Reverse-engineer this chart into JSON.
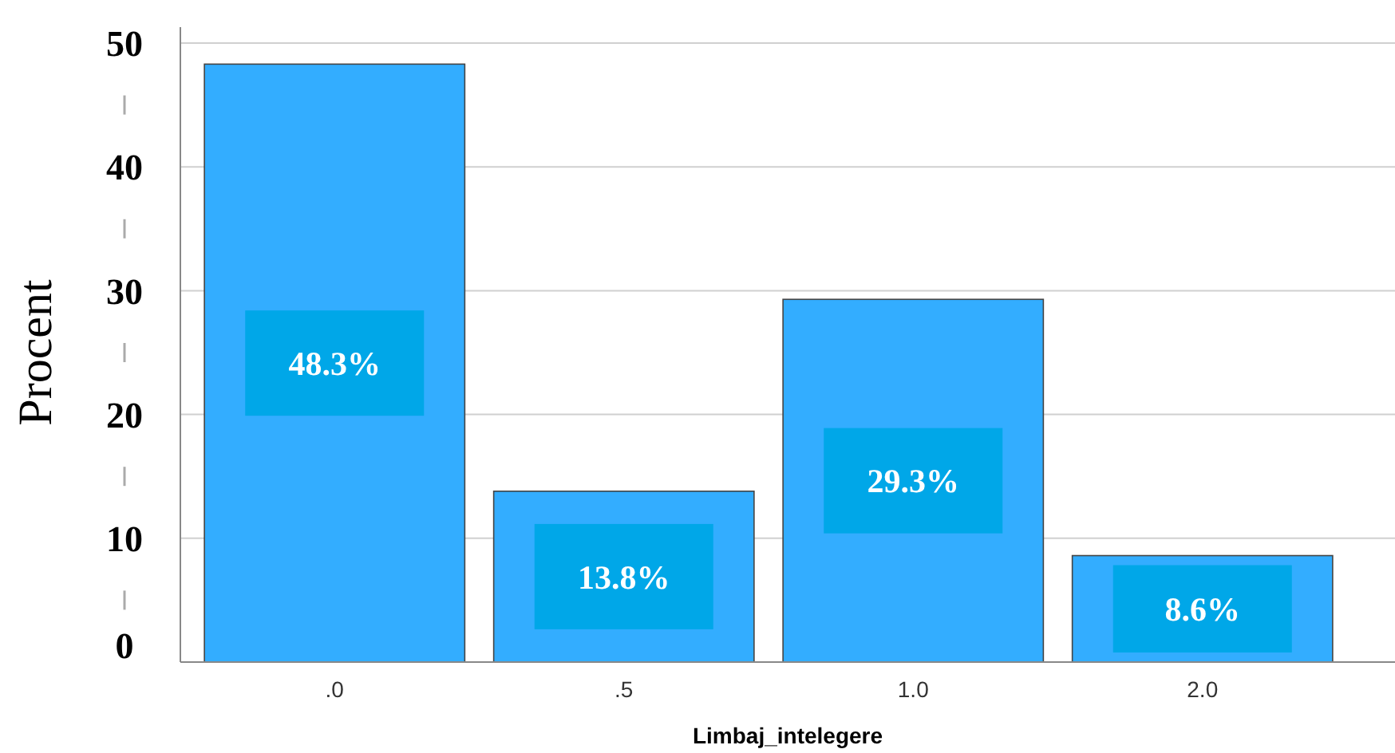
{
  "chart_data": {
    "type": "bar",
    "xlabel": "Limbaj_intelegere",
    "ylabel": "Procent",
    "categories": [
      ".0",
      ".5",
      "1.0",
      "2.0"
    ],
    "values": [
      48.3,
      13.8,
      29.3,
      8.6
    ],
    "value_labels": [
      "48.3%",
      "13.8%",
      "29.3%",
      "8.6%"
    ],
    "color": "#33adff",
    "ylim": [
      0,
      50
    ],
    "yticks": [
      0,
      10,
      20,
      30,
      40,
      50
    ],
    "grid": "y"
  }
}
